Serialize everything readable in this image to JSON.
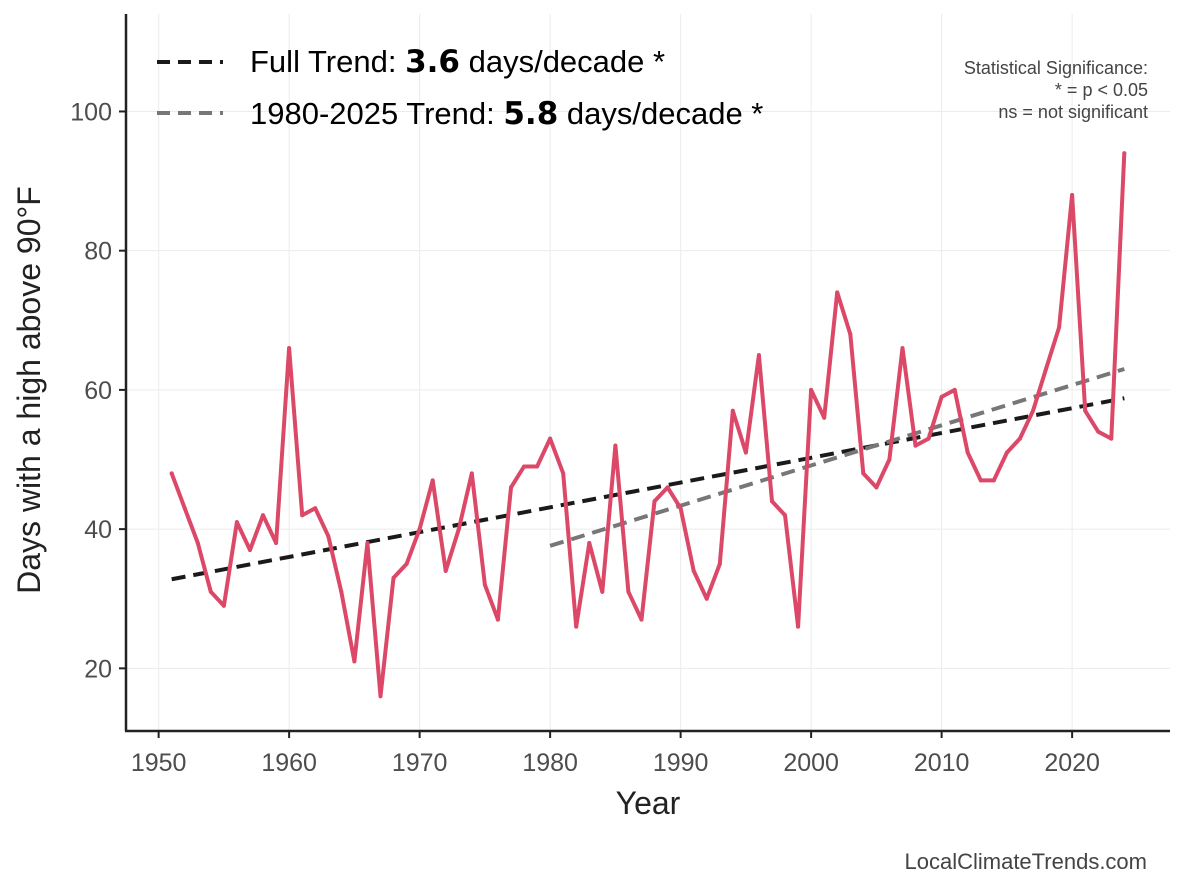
{
  "chart_data": {
    "type": "line",
    "xlabel": "Year",
    "ylabel": "Days with a high above 90°F",
    "xlim": [
      1947.5,
      2027.5
    ],
    "ylim": [
      11,
      114
    ],
    "x_ticks": [
      1950,
      1960,
      1970,
      1980,
      1990,
      2000,
      2010,
      2020
    ],
    "y_ticks": [
      20,
      40,
      60,
      80,
      100
    ],
    "grid": true,
    "legend_position": "top-left",
    "series": [
      {
        "color": "#dc4868",
        "x": [
          1951,
          1952,
          1953,
          1954,
          1955,
          1956,
          1957,
          1958,
          1959,
          1960,
          1961,
          1962,
          1963,
          1964,
          1965,
          1966,
          1967,
          1968,
          1969,
          1970,
          1971,
          1972,
          1973,
          1974,
          1975,
          1976,
          1977,
          1978,
          1979,
          1980,
          1981,
          1982,
          1983,
          1984,
          1985,
          1986,
          1987,
          1988,
          1989,
          1990,
          1991,
          1992,
          1993,
          1994,
          1995,
          1996,
          1997,
          1998,
          1999,
          2000,
          2001,
          2002,
          2003,
          2004,
          2005,
          2006,
          2007,
          2008,
          2009,
          2010,
          2011,
          2012,
          2013,
          2014,
          2015,
          2016,
          2017,
          2018,
          2019,
          2020,
          2021,
          2022,
          2023,
          2024
        ],
        "y": [
          48,
          43,
          38,
          31,
          29,
          41,
          37,
          42,
          38,
          66,
          42,
          43,
          39,
          31,
          21,
          38,
          16,
          33,
          35,
          40,
          47,
          34,
          40,
          48,
          32,
          27,
          46,
          49,
          49,
          53,
          48,
          26,
          38,
          31,
          52,
          31,
          27,
          44,
          46,
          43,
          34,
          30,
          35,
          57,
          51,
          65,
          44,
          42,
          26,
          60,
          56,
          74,
          68,
          48,
          46,
          50,
          66,
          52,
          53,
          59,
          60,
          51,
          47,
          47,
          51,
          53,
          57,
          63,
          69,
          88,
          57,
          54,
          53,
          94
        ]
      }
    ],
    "trend_lines": [
      {
        "name_prefix": "Full Trend: ",
        "rate": "3.6",
        "name_suffix": " days/decade *",
        "color": "#1a1a1a",
        "x": [
          1951,
          2024
        ],
        "y": [
          32.8,
          58.8
        ]
      },
      {
        "name_prefix": "1980-2025 Trend: ",
        "rate": "5.8",
        "name_suffix": " days/decade *",
        "color": "#777777",
        "x": [
          1980,
          2024
        ],
        "y": [
          37.6,
          63.0
        ]
      }
    ],
    "annotation": [
      "Statistical Significance:",
      "* = p < 0.05",
      "ns = not significant"
    ],
    "credit": "LocalClimateTrends.com"
  }
}
